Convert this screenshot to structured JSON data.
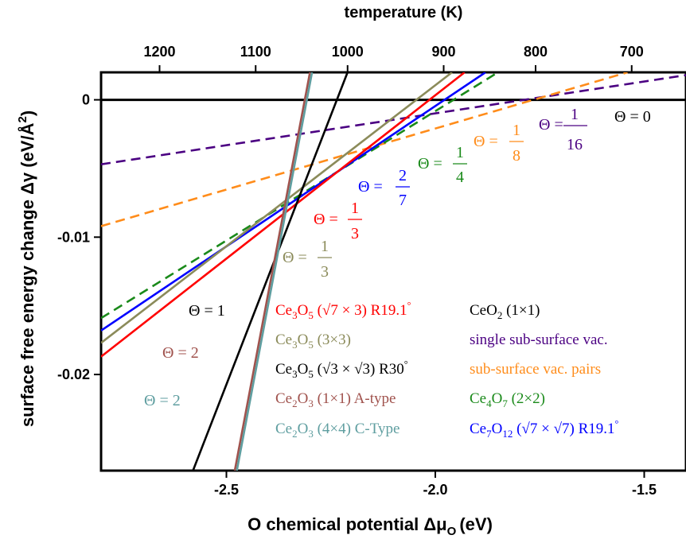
{
  "chart_data": {
    "type": "line",
    "xlabel": "O chemical potential Δμ",
    "xlabel_sub": "O",
    "xlabel_unit": "(eV)",
    "ylabel": "surface free energy change Δγ (eV/Å",
    "ylabel_sup": "2",
    "ylabel_end": ")",
    "top_xlabel": "temperature (K)",
    "xlim": [
      -2.8,
      -1.4
    ],
    "ylim": [
      -0.027,
      0.002
    ],
    "x_ticks": [
      {
        "value": -2.5,
        "label": "-2.5"
      },
      {
        "value": -2.0,
        "label": "-2.0"
      },
      {
        "value": -1.5,
        "label": "-1.5"
      }
    ],
    "y_ticks": [
      {
        "value": 0,
        "label": "0"
      },
      {
        "value": -0.01,
        "label": "-0.01"
      },
      {
        "value": -0.02,
        "label": "-0.02"
      }
    ],
    "top_ticks": [
      {
        "mu": -2.66,
        "label": "1200"
      },
      {
        "mu": -2.43,
        "label": "1100"
      },
      {
        "mu": -2.21,
        "label": "1000"
      },
      {
        "mu": -1.98,
        "label": "900"
      },
      {
        "mu": -1.76,
        "label": "800"
      },
      {
        "mu": -1.53,
        "label": "700"
      }
    ],
    "series": [
      {
        "key": "ceo2",
        "color": "#000000",
        "dash": false,
        "x": [
          -2.8,
          -1.4
        ],
        "y": [
          0,
          0
        ]
      },
      {
        "key": "single",
        "color": "#4b0082",
        "dash": true,
        "x": [
          -2.8,
          -1.4
        ],
        "y": [
          -0.0047,
          0.0018
        ]
      },
      {
        "key": "pairs",
        "color": "#ff8c1a",
        "dash": true,
        "x": [
          -2.8,
          -1.54
        ],
        "y": [
          -0.0092,
          0.002
        ]
      },
      {
        "key": "ce4o7",
        "color": "#1a8a1a",
        "dash": true,
        "x": [
          -2.8,
          -1.85
        ],
        "y": [
          -0.0159,
          0.002
        ]
      },
      {
        "key": "ce7o12",
        "color": "#0000ff",
        "dash": false,
        "x": [
          -2.8,
          -1.88
        ],
        "y": [
          -0.0168,
          0.002
        ]
      },
      {
        "key": "ce3o5_r19",
        "color": "#ff0000",
        "dash": false,
        "x": [
          -2.8,
          -1.93
        ],
        "y": [
          -0.0187,
          0.002
        ]
      },
      {
        "key": "ce3o5_3x3",
        "color": "#8b8b5a",
        "dash": false,
        "x": [
          -2.8,
          -1.96
        ],
        "y": [
          -0.0177,
          0.002
        ]
      },
      {
        "key": "ce3o5_r30",
        "color": "#000000",
        "dash": false,
        "x": [
          -2.58,
          -2.21
        ],
        "y": [
          -0.027,
          0.002
        ]
      },
      {
        "key": "ce2o3_a",
        "color": "#a0524d",
        "dash": false,
        "x": [
          -2.48,
          -2.3
        ],
        "y": [
          -0.027,
          0.002
        ]
      },
      {
        "key": "ce2o3_c",
        "color": "#5f9ea0",
        "dash": false,
        "x": [
          -2.475,
          -2.295
        ],
        "y": [
          -0.027,
          0.002
        ]
      }
    ],
    "annotations": [
      {
        "text": "Θ = 0",
        "color": "#000000"
      },
      {
        "text": "Θ = 1/16",
        "color": "#4b0082"
      },
      {
        "text": "Θ = 1/8",
        "color": "#ff8c1a"
      },
      {
        "text": "Θ = 1/4",
        "color": "#1a8a1a"
      },
      {
        "text": "Θ = 2/7",
        "color": "#0000ff"
      },
      {
        "text": "Θ = 1/3",
        "color": "#ff0000"
      },
      {
        "text": "Θ = 1/3",
        "color": "#8b8b5a"
      },
      {
        "text": "Θ = 1",
        "color": "#000000"
      },
      {
        "text": "Θ = 2",
        "color": "#a0524d"
      },
      {
        "text": "Θ = 2",
        "color": "#5f9ea0"
      }
    ],
    "legend": [
      {
        "text": "Ce3O5 (√7×3) R19.1°",
        "color": "#ff0000"
      },
      {
        "text": "CeO2 (1×1)",
        "color": "#000000"
      },
      {
        "text": "Ce3O5 (3×3)",
        "color": "#8b8b5a"
      },
      {
        "text": "single sub-surface vac.",
        "color": "#4b0082"
      },
      {
        "text": "Ce3O5 (√3×√3) R30°",
        "color": "#000000"
      },
      {
        "text": "sub-surface vac. pairs",
        "color": "#ff8c1a"
      },
      {
        "text": "Ce2O3 (1×1) A-type",
        "color": "#a0524d"
      },
      {
        "text": "Ce4O7 (2×2)",
        "color": "#1a8a1a"
      },
      {
        "text": "Ce2O3 (4×4) C-Type",
        "color": "#5f9ea0"
      },
      {
        "text": "Ce7O12 (√7×√7) R19.1°",
        "color": "#0000ff"
      }
    ],
    "legend_position": "bottom-right"
  }
}
